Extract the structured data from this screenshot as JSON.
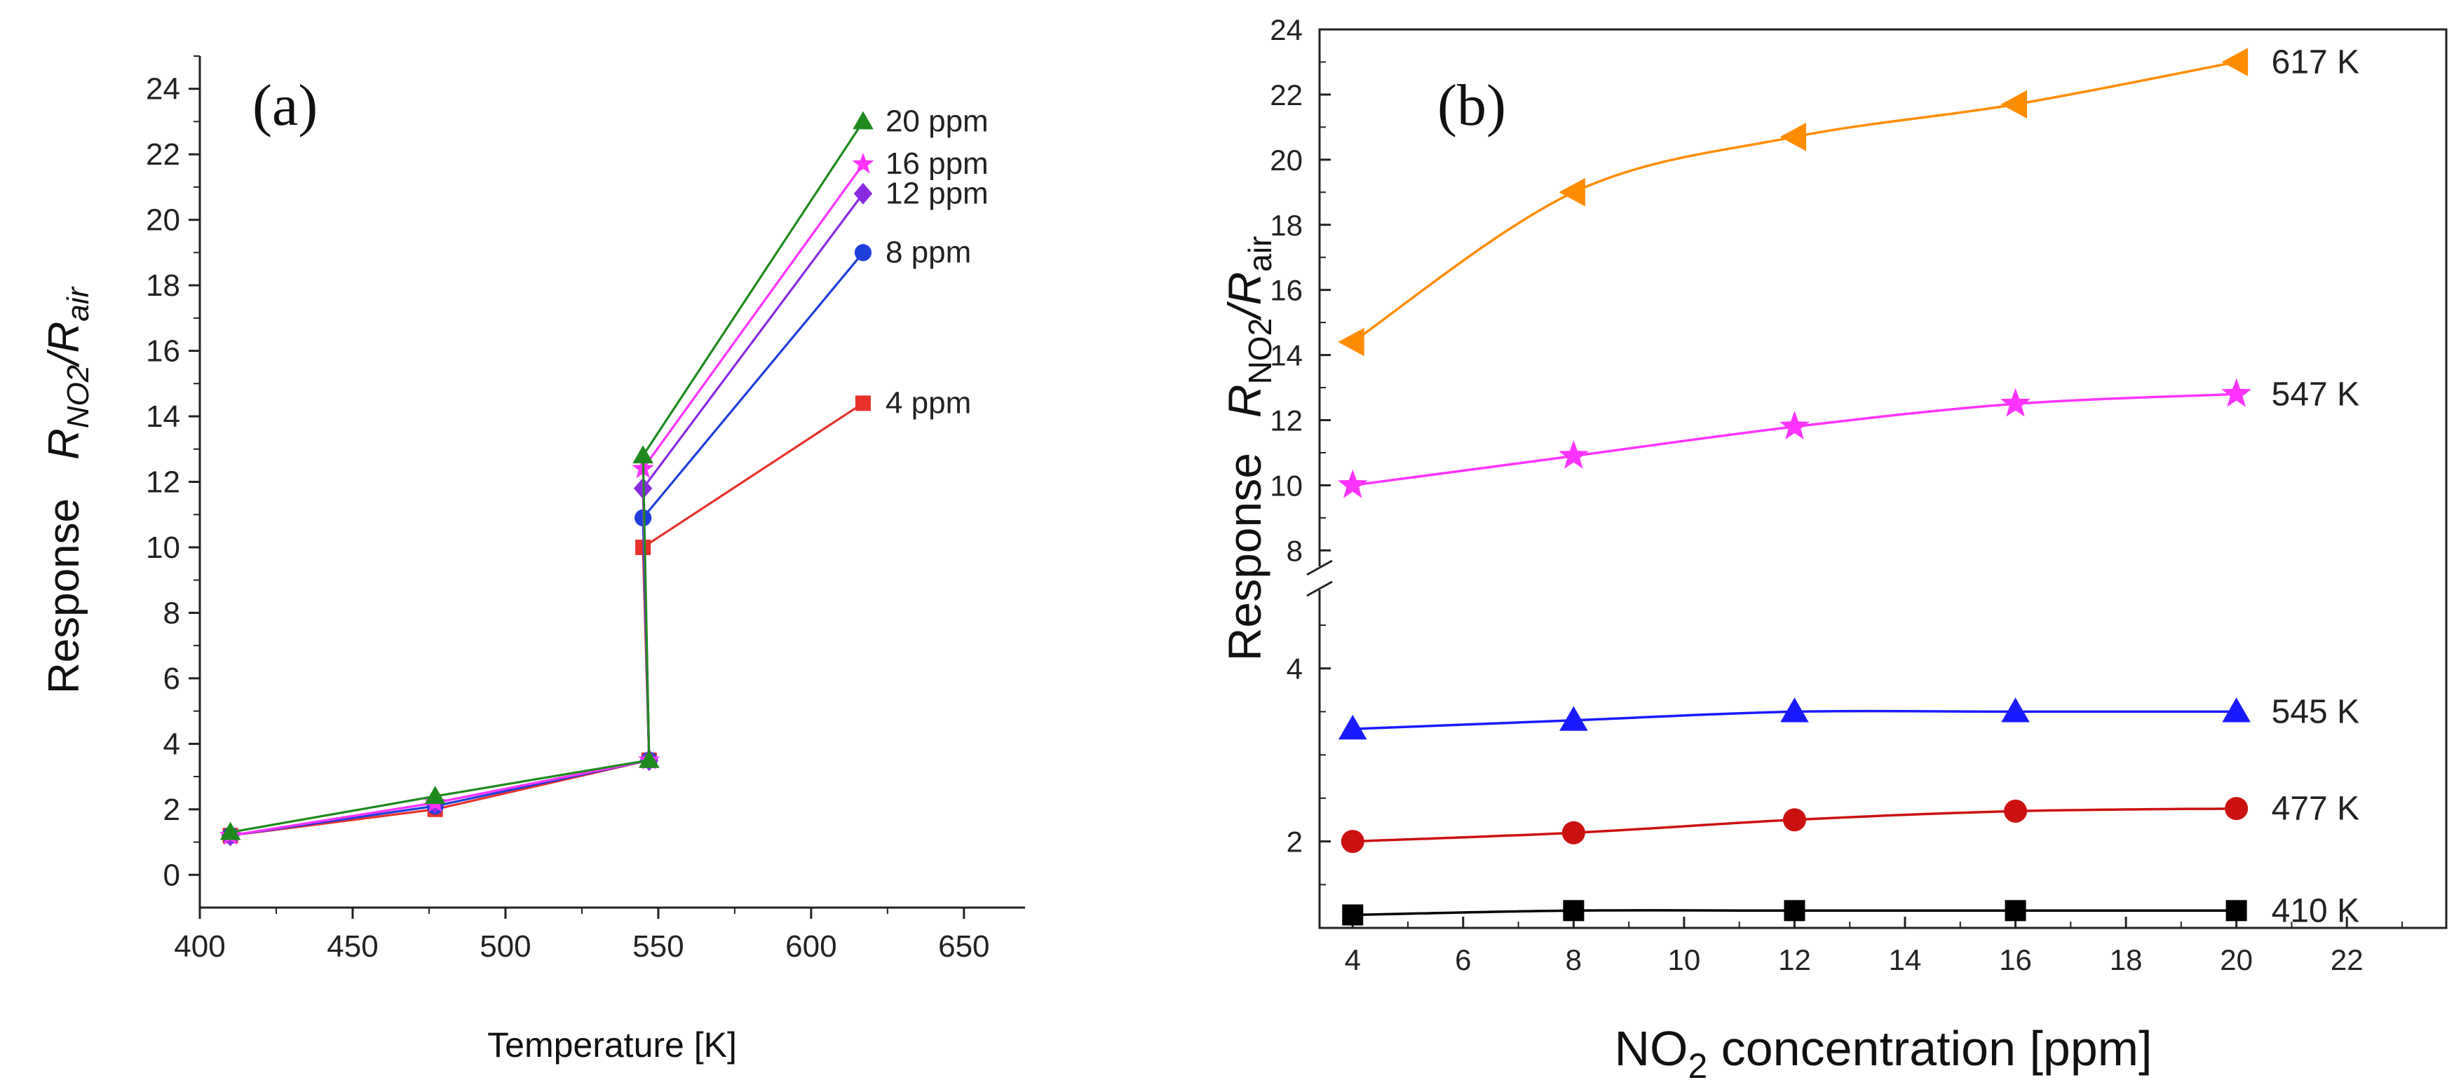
{
  "chart_data": [
    {
      "type": "line",
      "panel_label": "(a)",
      "xlabel": "Temperature [K]",
      "ylabel_prefix": "Response",
      "ylabel_main": "R",
      "ylabel_sub1": "NO2",
      "ylabel_mid": "/R",
      "ylabel_sub2": "air",
      "xlim": [
        400,
        670
      ],
      "ylim": [
        -1,
        25
      ],
      "x_ticks": [
        400,
        450,
        500,
        550,
        600,
        650
      ],
      "y_ticks": [
        0,
        2,
        4,
        6,
        8,
        10,
        12,
        14,
        16,
        18,
        20,
        22,
        24
      ],
      "legend_placement": "right of line ends",
      "series": [
        {
          "name": "4 ppm",
          "color": "#e8312b",
          "marker": "square",
          "x": [
            410,
            477,
            545,
            617
          ],
          "y": [
            1.2,
            2.0,
            10.0,
            14.4
          ]
        },
        {
          "name": "8 ppm",
          "color": "#1f3fdb",
          "marker": "circle",
          "x": [
            410,
            477,
            545,
            617
          ],
          "y": [
            1.2,
            2.1,
            10.9,
            19.0
          ]
        },
        {
          "name": "12 ppm",
          "color": "#8a2be2",
          "marker": "diamond",
          "x": [
            410,
            477,
            545,
            617
          ],
          "y": [
            1.2,
            2.2,
            11.8,
            20.8
          ]
        },
        {
          "name": "16 ppm",
          "color": "#ff33ff",
          "marker": "star",
          "x": [
            410,
            477,
            545,
            617
          ],
          "y": [
            1.2,
            2.2,
            12.4,
            21.7
          ]
        },
        {
          "name": "20 ppm",
          "color": "#1e8a1e",
          "marker": "triangle-up",
          "x": [
            410,
            477,
            545,
            617
          ],
          "y": [
            1.3,
            2.4,
            12.8,
            23.0
          ]
        }
      ],
      "jump_segment": {
        "x": 547,
        "y_low": 3.5
      }
    },
    {
      "type": "line",
      "panel_label": "(b)",
      "xlabel_main": "NO",
      "xlabel_sub": "2",
      "xlabel_rest": " concentration [ppm]",
      "ylabel_prefix": "Response",
      "ylabel_main": "R",
      "ylabel_sub1": "NO2",
      "ylabel_mid": "/R",
      "ylabel_sub2": "air",
      "xlim": [
        3.4,
        23.8
      ],
      "x_ticks": [
        4,
        6,
        8,
        10,
        12,
        14,
        16,
        18,
        20,
        22
      ],
      "broken_axis": true,
      "lower_segment": {
        "ylim": [
          1.0,
          4.8
        ],
        "ticks": [
          2,
          4
        ]
      },
      "upper_segment": {
        "ylim": [
          7.9,
          24
        ],
        "ticks": [
          8,
          10,
          12,
          14,
          16,
          18,
          20,
          22,
          24
        ]
      },
      "series": [
        {
          "name": "617 K",
          "color": "#ff8c00",
          "marker": "triangle-left",
          "x": [
            4,
            8,
            12,
            16,
            20
          ],
          "y": [
            14.4,
            19.0,
            20.7,
            21.7,
            23.0
          ],
          "segment": "upper"
        },
        {
          "name": "547 K",
          "color": "#ff33ff",
          "marker": "star",
          "x": [
            4,
            8,
            12,
            16,
            20
          ],
          "y": [
            10.0,
            10.9,
            11.8,
            12.5,
            12.8
          ],
          "segment": "upper"
        },
        {
          "name": "545 K",
          "color": "#1a1aff",
          "marker": "triangle-up",
          "x": [
            4,
            8,
            12,
            16,
            20
          ],
          "y": [
            3.3,
            3.4,
            3.5,
            3.5,
            3.5
          ],
          "segment": "lower"
        },
        {
          "name": "477 K",
          "color": "#cc1111",
          "marker": "circle",
          "x": [
            4,
            8,
            12,
            16,
            20
          ],
          "y": [
            2.0,
            2.1,
            2.25,
            2.35,
            2.38
          ],
          "segment": "lower"
        },
        {
          "name": "410 K",
          "color": "#000000",
          "marker": "square",
          "x": [
            4,
            8,
            12,
            16,
            20
          ],
          "y": [
            1.15,
            1.2,
            1.2,
            1.2,
            1.2
          ],
          "segment": "lower"
        }
      ]
    }
  ]
}
